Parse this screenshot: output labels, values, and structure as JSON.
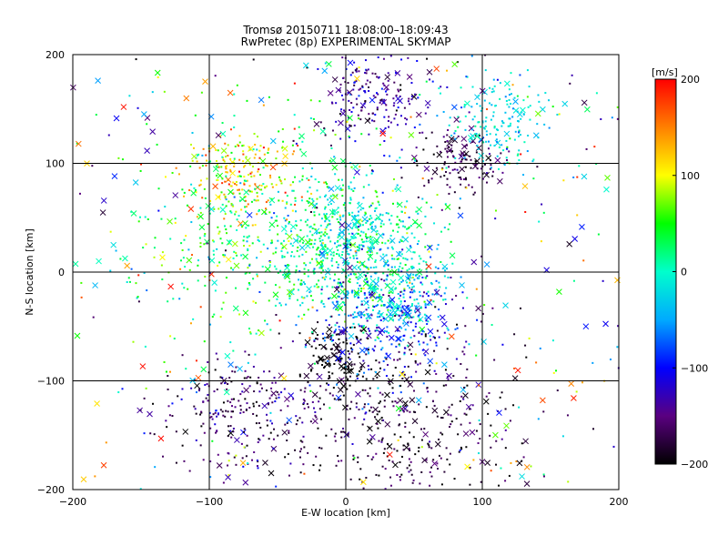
{
  "chart_data": {
    "type": "scatter",
    "title": "Tromsø 20150711 18:08:00–18:09:43",
    "subtitle": "RwPretec (8p) EXPERIMENTAL SKYMAP",
    "xlabel": "E-W location [km]",
    "ylabel": "N-S location [km]",
    "xlim": [
      -200,
      200
    ],
    "ylim": [
      -200,
      200
    ],
    "xticks": [
      -200,
      -100,
      0,
      100,
      200
    ],
    "yticks": [
      -200,
      -100,
      0,
      100,
      200
    ],
    "xtick_labels": [
      "−200",
      "−100",
      "0",
      "100",
      "200"
    ],
    "ytick_labels": [
      "−200",
      "−100",
      "0",
      "100",
      "200"
    ],
    "grid": true,
    "markers": [
      "dot",
      "x"
    ],
    "colorbar": {
      "label": "[m/s]",
      "range": [
        -200,
        200
      ],
      "ticks": [
        200,
        100,
        0,
        -100,
        -200
      ],
      "tick_labels": [
        "200",
        "100",
        "0",
        "−100",
        "−200"
      ],
      "colormap": [
        "#000000",
        "#5a0080",
        "#0000ff",
        "#00aaff",
        "#00ffcc",
        "#00ff00",
        "#ffff00",
        "#ff8000",
        "#ff0000"
      ]
    },
    "clusters": [
      {
        "x": 0,
        "y": 20,
        "spread": 30,
        "value": 0,
        "value_spread": 60
      },
      {
        "x": 40,
        "y": -25,
        "spread": 20,
        "value": -20,
        "value_spread": 50
      },
      {
        "x": 20,
        "y": 165,
        "spread": 25,
        "value": -140,
        "value_spread": 50
      },
      {
        "x": 85,
        "y": 100,
        "spread": 15,
        "value": -170,
        "value_spread": 30
      },
      {
        "x": -70,
        "y": -130,
        "spread": 30,
        "value": -160,
        "value_spread": 50
      },
      {
        "x": -5,
        "y": -80,
        "spread": 15,
        "value": -200,
        "value_spread": 20
      },
      {
        "x": -75,
        "y": 90,
        "spread": 20,
        "value": 120,
        "value_spread": 60
      },
      {
        "x": -60,
        "y": 40,
        "spread": 50,
        "value": 30,
        "value_spread": 60
      },
      {
        "x": 30,
        "y": -50,
        "spread": 30,
        "value": -100,
        "value_spread": 60
      },
      {
        "x": 50,
        "y": -150,
        "spread": 40,
        "value": -180,
        "value_spread": 40
      },
      {
        "x": 110,
        "y": 140,
        "spread": 20,
        "value": -20,
        "value_spread": 40
      }
    ]
  }
}
